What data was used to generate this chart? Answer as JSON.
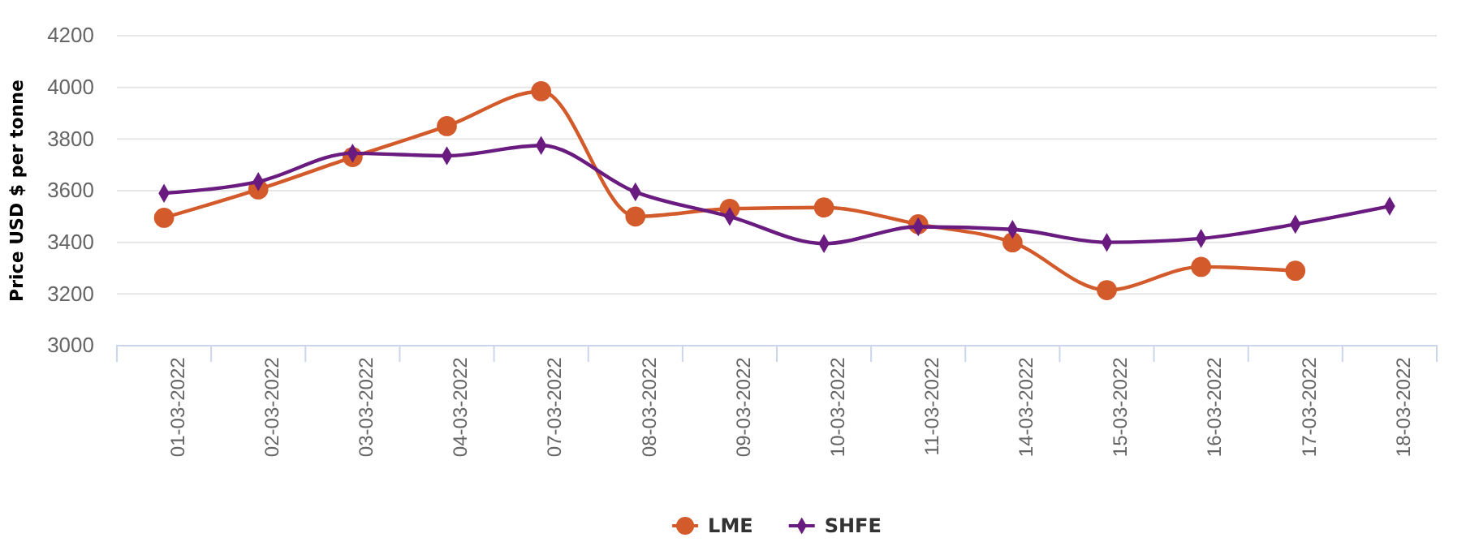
{
  "chart_data": {
    "type": "line",
    "ylabel": "Price USD $ per tonne",
    "categories": [
      "01-03-2022",
      "02-03-2022",
      "03-03-2022",
      "04-03-2022",
      "07-03-2022",
      "08-03-2022",
      "09-03-2022",
      "10-03-2022",
      "11-03-2022",
      "14-03-2022",
      "15-03-2022",
      "16-03-2022",
      "17-03-2022",
      "18-03-2022"
    ],
    "series": [
      {
        "name": "LME",
        "color": "#d35a2a",
        "marker": "circle",
        "values": [
          3495,
          3605,
          3730,
          3850,
          3985,
          3500,
          3530,
          3535,
          3470,
          3400,
          3215,
          3305,
          3290,
          null
        ]
      },
      {
        "name": "SHFE",
        "color": "#6a1b7f",
        "marker": "diamond",
        "values": [
          3590,
          3635,
          3745,
          3735,
          3775,
          3595,
          3500,
          3395,
          3460,
          3450,
          3400,
          3415,
          3470,
          3540
        ]
      }
    ],
    "ylim": [
      3000,
      4200
    ],
    "yticks": [
      3000,
      3200,
      3400,
      3600,
      3800,
      4000,
      4200
    ],
    "grid": "y",
    "legend": "bottom"
  }
}
